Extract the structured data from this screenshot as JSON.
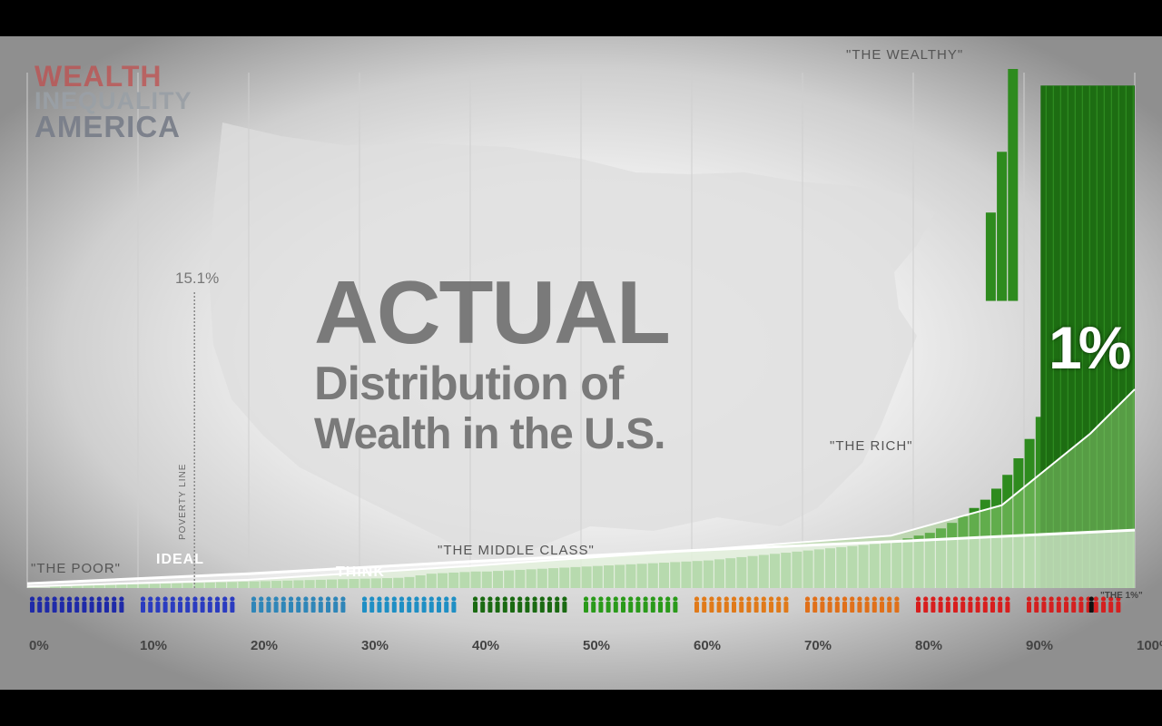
{
  "logo": {
    "line1": "WEALTH",
    "line2": "INEQUALITY",
    "line3": "AMERICA"
  },
  "title": {
    "line1": "ACTUAL",
    "line2": "Distribution of",
    "line3": "Wealth in the U.S."
  },
  "annotations": {
    "poor": "\"THE POOR\"",
    "ideal": "IDEAL",
    "think": "THINK",
    "middle_class": "\"THE MIDDLE CLASS\"",
    "rich": "\"THE RICH\"",
    "wealthy": "\"THE WEALTHY\"",
    "one_percent_big": "1%",
    "one_percent_label": "\"THE 1%\""
  },
  "poverty_line": {
    "value_label": "15.1%",
    "label": "POVERTY LINE",
    "x_percent": 15.1
  },
  "colors": {
    "bar_green": "#2e8b1e",
    "bar_dark_green": "#1d6d12",
    "overlay_green": "#9fd886",
    "groups": [
      "#1f2aa8",
      "#2b3cc0",
      "#2f86b8",
      "#1f8fc4",
      "#1a6a12",
      "#2a9a1a",
      "#e07a1a",
      "#e0701a",
      "#d81e1e",
      "#d42020"
    ],
    "top_one_figure": "#111111"
  },
  "chart_data": {
    "type": "bar",
    "title": "ACTUAL Distribution of Wealth in the U.S.",
    "xlabel": "",
    "ylabel": "",
    "x_ticks": [
      "0%",
      "10%",
      "20%",
      "30%",
      "40%",
      "50%",
      "60%",
      "70%",
      "80%",
      "90%",
      "100%"
    ],
    "xlim": [
      0,
      100
    ],
    "grid": true,
    "series": [
      {
        "values": [
          0.02,
          0.02,
          0.3,
          0.3,
          0.4,
          0.45,
          0.5,
          0.55,
          0.6,
          0.65,
          0.7,
          0.75,
          0.8,
          0.85,
          0.9,
          0.95,
          1.0,
          1.05,
          1.1,
          1.15,
          1.2,
          1.25,
          1.3,
          1.35,
          1.4,
          1.45,
          1.5,
          1.55,
          1.6,
          1.65,
          1.7,
          1.75,
          1.8,
          1.85,
          2.0,
          2.3,
          2.6,
          2.7,
          2.8,
          2.9,
          3.0,
          3.0,
          3.1,
          3.2,
          3.3,
          3.4,
          3.5,
          3.6,
          3.7,
          3.8,
          3.9,
          4.0,
          4.1,
          4.2,
          4.3,
          4.4,
          4.5,
          4.6,
          4.7,
          4.8,
          4.9,
          5.0,
          5.2,
          5.4,
          5.6,
          5.8,
          6.0,
          6.2,
          6.4,
          6.6,
          6.8,
          7.0,
          7.2,
          7.4,
          7.6,
          7.8,
          8.0,
          8.3,
          8.6,
          9.0,
          9.5,
          10.0,
          10.8,
          11.8,
          13.0,
          14.5,
          16.0,
          18.0,
          20.5,
          23.5,
          27.0,
          31.0,
          35.5,
          41.0,
          47.5,
          55.5,
          0,
          0,
          0,
          0
        ]
      }
    ],
    "stacked_wealthy_bars": [
      {
        "x_percent": 86.5,
        "bottom": 52,
        "top": 68
      },
      {
        "x_percent": 87.5,
        "bottom": 52,
        "top": 79
      },
      {
        "x_percent": 88.5,
        "bottom": 52,
        "top": 94
      }
    ],
    "top_one_percent_value": 91,
    "ymax": 94,
    "overlays": [
      {
        "name": "IDEAL",
        "points": [
          [
            0,
            0.8
          ],
          [
            20,
            2.6
          ],
          [
            40,
            4.8
          ],
          [
            60,
            6.8
          ],
          [
            80,
            8.6
          ],
          [
            100,
            10.5
          ]
        ]
      },
      {
        "name": "THINK",
        "points": [
          [
            0,
            0.3
          ],
          [
            20,
            1.5
          ],
          [
            40,
            4.0
          ],
          [
            60,
            6.8
          ],
          [
            78,
            9.5
          ],
          [
            88,
            15
          ],
          [
            96,
            28
          ],
          [
            100,
            36
          ]
        ]
      }
    ]
  }
}
